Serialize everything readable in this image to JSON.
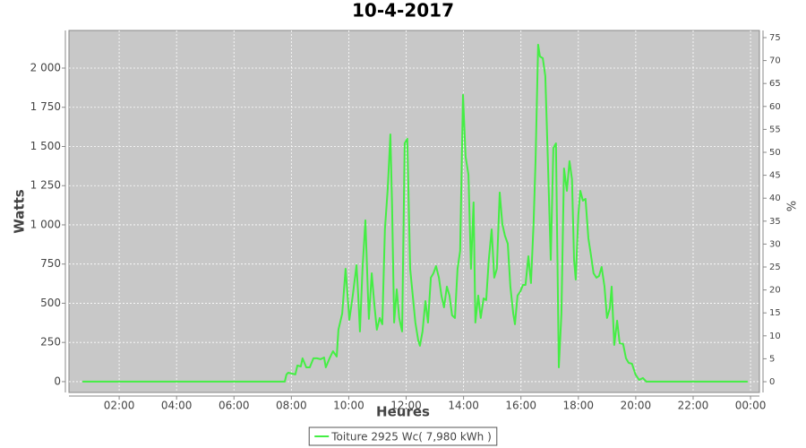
{
  "chart_data": {
    "type": "line",
    "title": "10-4-2017",
    "xlabel": "Heures",
    "ylabel": "Watts",
    "y2label": "%",
    "x": [
      0.72,
      7.77,
      7.83,
      7.89,
      8.14,
      8.21,
      8.33,
      8.39,
      8.52,
      8.64,
      8.77,
      8.89,
      9.02,
      9.14,
      9.2,
      9.33,
      9.45,
      9.58,
      9.64,
      9.77,
      9.89,
      10.02,
      10.14,
      10.27,
      10.33,
      10.39,
      10.48,
      10.58,
      10.67,
      10.7,
      10.8,
      10.89,
      10.98,
      11.08,
      11.17,
      11.26,
      11.36,
      11.45,
      11.51,
      11.58,
      11.67,
      11.76,
      11.86,
      11.95,
      12.04,
      12.14,
      12.23,
      12.32,
      12.42,
      12.48,
      12.57,
      12.67,
      12.76,
      12.86,
      12.95,
      13.04,
      13.14,
      13.23,
      13.32,
      13.42,
      13.51,
      13.6,
      13.7,
      13.79,
      13.88,
      13.98,
      14.07,
      14.17,
      14.26,
      14.35,
      14.41,
      14.51,
      14.6,
      14.7,
      14.79,
      14.88,
      14.98,
      15.07,
      15.16,
      15.26,
      15.35,
      15.44,
      15.54,
      15.63,
      15.73,
      15.79,
      15.88,
      15.98,
      16.07,
      16.16,
      16.26,
      16.35,
      16.44,
      16.51,
      16.6,
      16.66,
      16.76,
      16.85,
      16.94,
      17.04,
      17.13,
      17.22,
      17.32,
      17.41,
      17.5,
      17.6,
      17.69,
      17.78,
      17.85,
      17.91,
      18.0,
      18.07,
      18.16,
      18.25,
      18.35,
      18.44,
      18.53,
      18.63,
      18.72,
      18.81,
      18.91,
      19.0,
      19.1,
      19.16,
      19.25,
      19.35,
      19.44,
      19.56,
      19.66,
      19.75,
      19.87,
      19.99,
      20.12,
      20.25,
      20.37,
      23.9
    ],
    "series": [
      {
        "name": "Toiture 2925 Wc( 7,980 kWh )",
        "color": "#44ee44",
        "values": [
          0,
          0,
          46,
          57,
          46,
          103,
          97,
          149,
          91,
          91,
          149,
          149,
          143,
          154,
          91,
          149,
          194,
          160,
          331,
          434,
          720,
          394,
          549,
          743,
          549,
          320,
          720,
          1029,
          549,
          400,
          691,
          491,
          331,
          406,
          366,
          971,
          1234,
          1577,
          1120,
          377,
          589,
          406,
          320,
          1520,
          1549,
          720,
          549,
          377,
          263,
          229,
          320,
          514,
          377,
          663,
          691,
          737,
          663,
          549,
          474,
          606,
          549,
          423,
          406,
          720,
          834,
          1829,
          1434,
          1320,
          720,
          1143,
          377,
          549,
          406,
          531,
          520,
          777,
          971,
          663,
          720,
          1206,
          1006,
          931,
          880,
          606,
          434,
          366,
          549,
          577,
          617,
          617,
          800,
          629,
          1006,
          1406,
          2149,
          2074,
          2063,
          1949,
          1406,
          777,
          1491,
          1520,
          91,
          434,
          1360,
          1217,
          1406,
          1291,
          777,
          651,
          1063,
          1217,
          1154,
          1166,
          914,
          806,
          691,
          663,
          674,
          731,
          606,
          406,
          469,
          606,
          234,
          389,
          246,
          240,
          149,
          120,
          114,
          46,
          11,
          23,
          0,
          0
        ]
      }
    ],
    "xlim": [
      0.25,
      24.31
    ],
    "xticks": [
      {
        "value": 2,
        "label": "02:00"
      },
      {
        "value": 4,
        "label": "04:00"
      },
      {
        "value": 6,
        "label": "06:00"
      },
      {
        "value": 8,
        "label": "08:00"
      },
      {
        "value": 10,
        "label": "10:00"
      },
      {
        "value": 12,
        "label": "12:00"
      },
      {
        "value": 14,
        "label": "14:00"
      },
      {
        "value": 16,
        "label": "16:00"
      },
      {
        "value": 18,
        "label": "18:00"
      },
      {
        "value": 20,
        "label": "20:00"
      },
      {
        "value": 22,
        "label": "22:00"
      },
      {
        "value": 24,
        "label": "00:00"
      }
    ],
    "ylim": [
      -69,
      2240
    ],
    "yticks": [
      0,
      250,
      500,
      750,
      {
        "value": 1000,
        "label": "1 000"
      },
      {
        "value": 1250,
        "label": "1 250"
      },
      {
        "value": 1500,
        "label": "1 500"
      },
      {
        "value": 1750,
        "label": "1 750"
      },
      {
        "value": 2000,
        "label": "2 000"
      }
    ],
    "y2lim": [
      -2.34,
      76.56
    ],
    "y2ticks": [
      0,
      5,
      10,
      15,
      20,
      25,
      30,
      35,
      40,
      45,
      50,
      55,
      60,
      65,
      70,
      75
    ],
    "grid": true,
    "legend": "bottom",
    "background": "#c8c8c8"
  }
}
